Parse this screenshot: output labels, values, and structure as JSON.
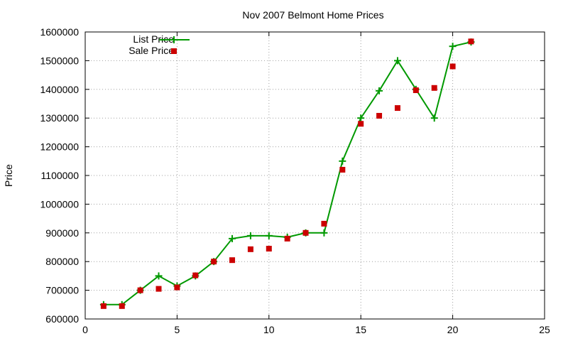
{
  "chart_data": {
    "type": "line",
    "title": "Nov 2007 Belmont Home Prices",
    "xlabel": "",
    "ylabel": "Price",
    "xlim": [
      0,
      25
    ],
    "ylim": [
      600000,
      1600000
    ],
    "xticks": [
      0,
      5,
      10,
      15,
      20,
      25
    ],
    "yticks": [
      600000,
      700000,
      800000,
      900000,
      1000000,
      1100000,
      1200000,
      1300000,
      1400000,
      1500000,
      1600000
    ],
    "grid": true,
    "legend_position": "top-left",
    "series": [
      {
        "name": "List Price",
        "style": "lines+plus-markers",
        "color": "#009900",
        "x": [
          1,
          2,
          3,
          4,
          5,
          6,
          7,
          8,
          9,
          10,
          11,
          12,
          13,
          14,
          15,
          16,
          17,
          18,
          19,
          20,
          21
        ],
        "y": [
          650000,
          650000,
          700000,
          750000,
          715000,
          750000,
          800000,
          880000,
          890000,
          890000,
          885000,
          900000,
          900000,
          1150000,
          1300000,
          1395000,
          1500000,
          1400000,
          1300000,
          1550000,
          1565000
        ]
      },
      {
        "name": "Sale Price",
        "style": "square-markers",
        "color": "#cc0000",
        "x": [
          1,
          2,
          3,
          4,
          5,
          6,
          7,
          8,
          9,
          10,
          11,
          12,
          13,
          14,
          15,
          16,
          17,
          18,
          19,
          20,
          21
        ],
        "y": [
          645000,
          645000,
          700000,
          705000,
          710000,
          752000,
          800000,
          805000,
          843000,
          845000,
          880000,
          900000,
          932000,
          1120000,
          1280000,
          1308000,
          1335000,
          1397000,
          1405000,
          1480000,
          1567000
        ]
      }
    ]
  }
}
